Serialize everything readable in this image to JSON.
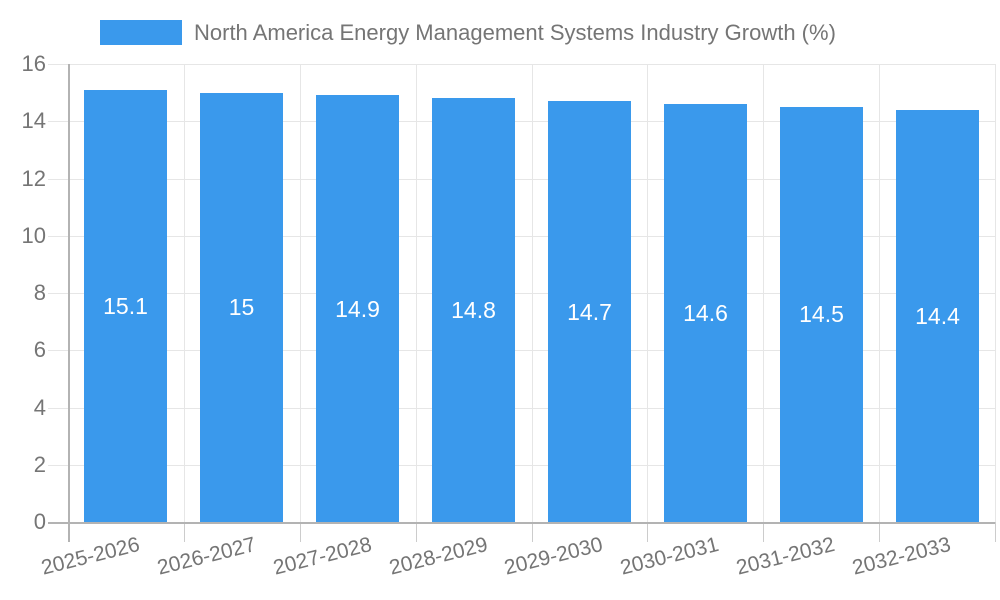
{
  "chart": {
    "legend_label": "North America Energy Management Systems Industry Growth (%)"
  },
  "chart_data": {
    "type": "bar",
    "title": "North America Energy Management Systems Industry Growth (%)",
    "categories": [
      "2025-2026",
      "2026-2027",
      "2027-2028",
      "2028-2029",
      "2029-2030",
      "2030-2031",
      "2031-2032",
      "2032-2033"
    ],
    "values": [
      15.1,
      15,
      14.9,
      14.8,
      14.7,
      14.6,
      14.5,
      14.4
    ],
    "value_labels": [
      "15.1",
      "15",
      "14.9",
      "14.8",
      "14.7",
      "14.6",
      "14.5",
      "14.4"
    ],
    "xlabel": "",
    "ylabel": "",
    "ylim": [
      0,
      16
    ],
    "yticks": [
      0,
      2,
      4,
      6,
      8,
      10,
      12,
      14,
      16
    ],
    "grid": true,
    "legend_position": "top-center",
    "bar_color": "#3a99ec",
    "axis_label_color": "#757575",
    "grid_color": "#e6e6e6",
    "tick_color": "#cccccc",
    "axis_color": "#b3b3b3",
    "value_label_color": "#ffffff",
    "background_color": "#ffffff"
  }
}
